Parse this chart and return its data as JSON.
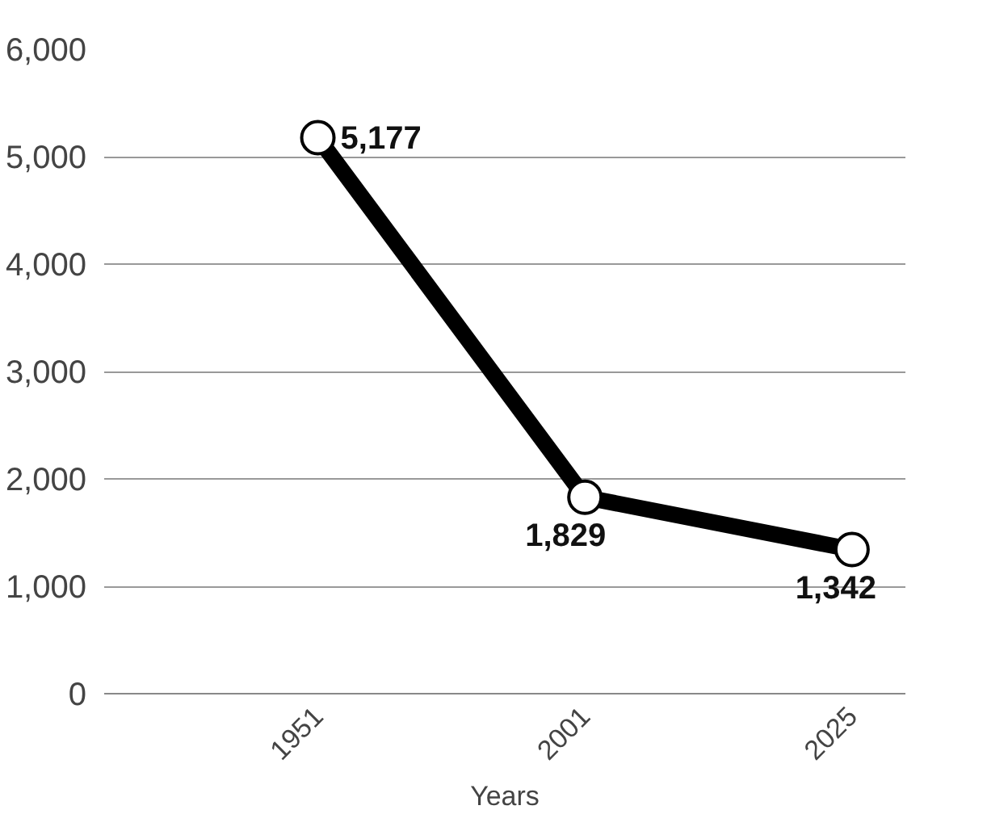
{
  "chart_data": {
    "type": "line",
    "xlabel": "Years",
    "categories": [
      "1951",
      "2001",
      "2025"
    ],
    "series": [
      {
        "color": "#000000",
        "values": [
          5177,
          1829,
          1342
        ],
        "value_labels": [
          "5,177",
          "1,829",
          "1,342"
        ]
      }
    ],
    "ylim": [
      0,
      6000
    ],
    "yticks": [
      {
        "value": 0,
        "label": "0"
      },
      {
        "value": 1000,
        "label": "1,000"
      },
      {
        "value": 2000,
        "label": "2,000"
      },
      {
        "value": 3000,
        "label": "3,000"
      },
      {
        "value": 4000,
        "label": "4,000"
      },
      {
        "value": 5000,
        "label": "5,000"
      },
      {
        "value": 6000,
        "label": "6,000"
      }
    ],
    "grid": "y",
    "marker": "circle",
    "line_style": "solid"
  }
}
